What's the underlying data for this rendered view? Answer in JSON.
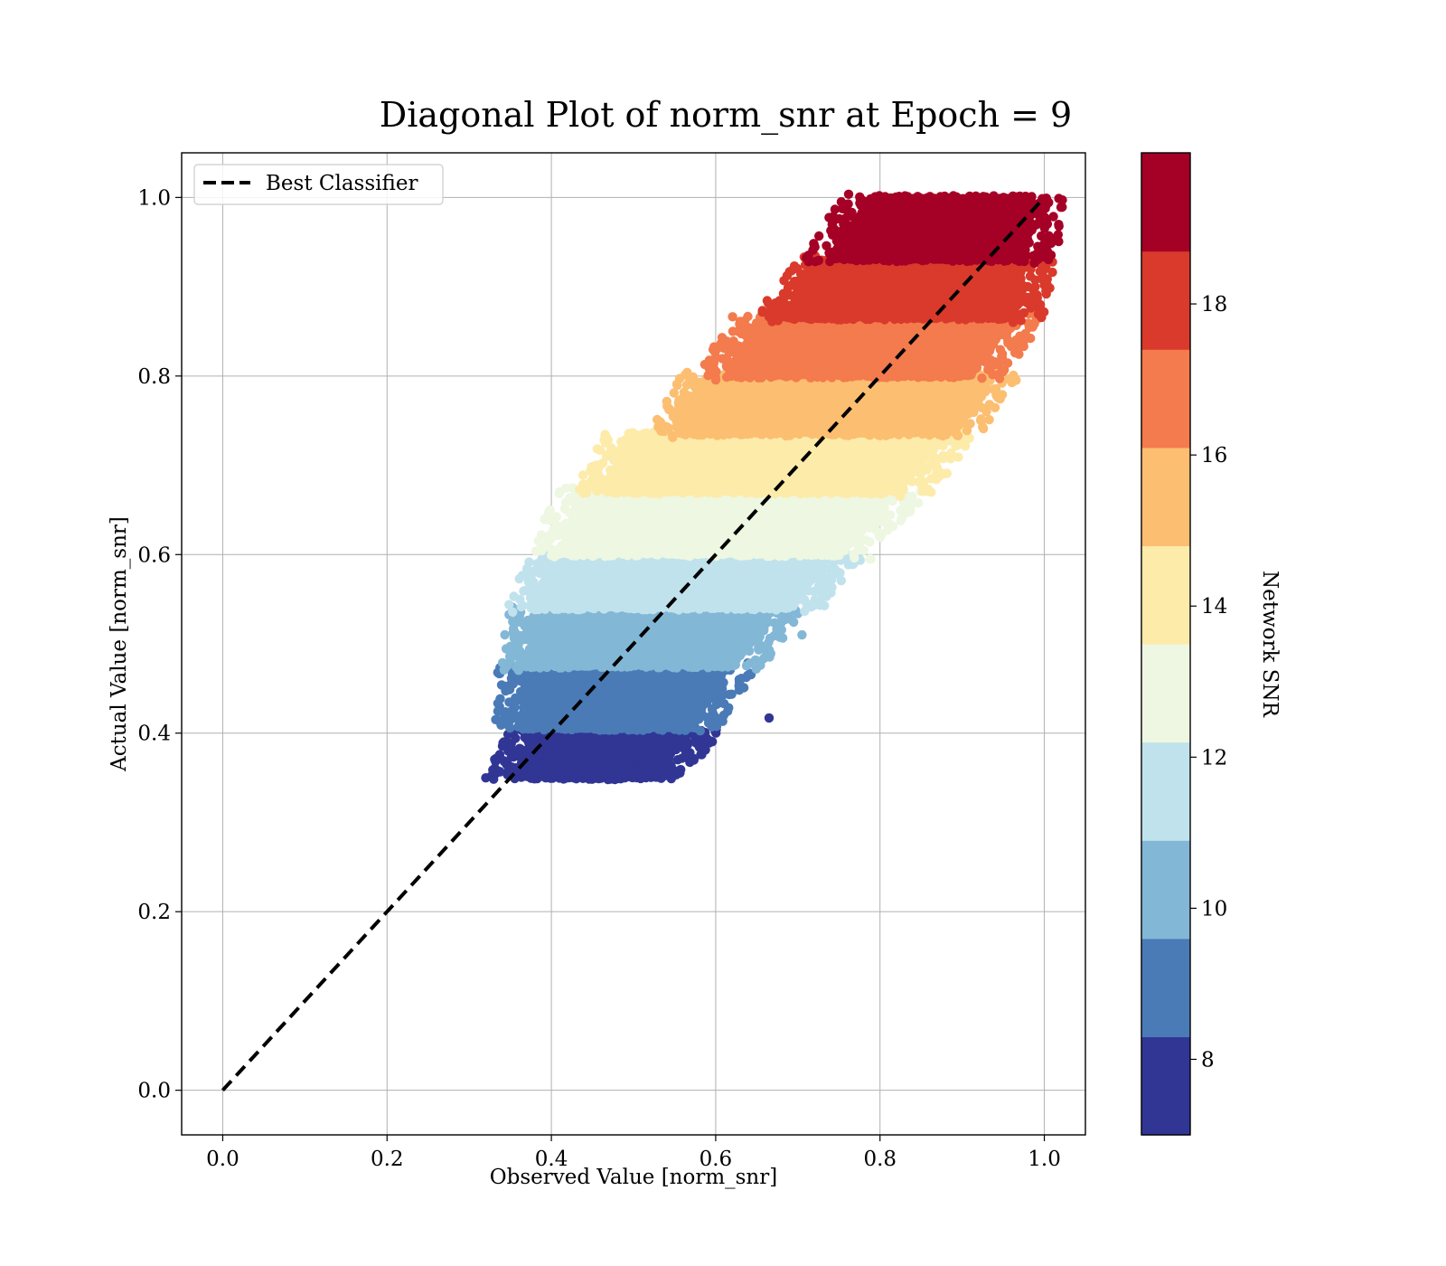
{
  "chart_data": {
    "type": "scatter",
    "title": "Diagonal Plot of norm_snr at Epoch = 9",
    "xlabel": "Observed Value [norm_snr]",
    "ylabel": "Actual Value [norm_snr]",
    "xlim": [
      -0.05,
      1.05
    ],
    "ylim": [
      -0.05,
      1.05
    ],
    "xticks": [
      "0.0",
      "0.2",
      "0.4",
      "0.6",
      "0.8",
      "1.0"
    ],
    "yticks": [
      "0.0",
      "0.2",
      "0.4",
      "0.6",
      "0.8",
      "1.0"
    ],
    "grid": true,
    "legend": {
      "placement": "top-left",
      "entries": [
        {
          "label": "Best Classifier",
          "style": "dashed",
          "color": "#000000"
        }
      ]
    },
    "reference_line": {
      "x": [
        0.0,
        1.0
      ],
      "y": [
        0.0,
        1.0
      ]
    },
    "colorbar": {
      "label": "Network SNR",
      "range": [
        7,
        20
      ],
      "ticks": [
        "8",
        "10",
        "12",
        "14",
        "16",
        "18"
      ],
      "band_colors": [
        "#313695",
        "#4a7bb7",
        "#83b7d6",
        "#c0e2ed",
        "#eef7e1",
        "#fdebaa",
        "#fcbe71",
        "#f37b4d",
        "#d93a2b",
        "#a50026"
      ]
    },
    "bands": [
      {
        "color": "#313695",
        "ylo": 0.35,
        "yhi": 0.405,
        "xmin_lo": 0.355,
        "xmin_hi": 0.385,
        "xmax_lo": 0.52,
        "xmax_hi": 0.57,
        "tail_x": [
          0.6,
          0.665
        ],
        "tail_y": [
          0.41,
          0.417
        ]
      },
      {
        "color": "#4a7bb7",
        "ylo": 0.405,
        "yhi": 0.475,
        "xmin_lo": 0.365,
        "xmin_hi": 0.37,
        "xmax_lo": 0.57,
        "xmax_hi": 0.61
      },
      {
        "color": "#83b7d6",
        "ylo": 0.475,
        "yhi": 0.54,
        "xmin_lo": 0.37,
        "xmin_hi": 0.385,
        "xmax_lo": 0.62,
        "xmax_hi": 0.67,
        "tail_x": [
          0.705
        ],
        "tail_y": [
          0.51
        ]
      },
      {
        "color": "#c0e2ed",
        "ylo": 0.54,
        "yhi": 0.6,
        "xmin_lo": 0.38,
        "xmin_hi": 0.41,
        "xmax_lo": 0.69,
        "xmax_hi": 0.74
      },
      {
        "color": "#eef7e1",
        "ylo": 0.6,
        "yhi": 0.67,
        "xmin_lo": 0.41,
        "xmin_hi": 0.44,
        "xmax_lo": 0.75,
        "xmax_hi": 0.82
      },
      {
        "color": "#fdebaa",
        "ylo": 0.67,
        "yhi": 0.735,
        "xmin_lo": 0.465,
        "xmin_hi": 0.5,
        "xmax_lo": 0.82,
        "xmax_hi": 0.88
      },
      {
        "color": "#fcbe71",
        "ylo": 0.735,
        "yhi": 0.8,
        "xmin_lo": 0.555,
        "xmin_hi": 0.59,
        "xmax_lo": 0.88,
        "xmax_hi": 0.93
      },
      {
        "color": "#f37b4d",
        "ylo": 0.8,
        "yhi": 0.865,
        "xmin_lo": 0.615,
        "xmin_hi": 0.655,
        "xmax_lo": 0.91,
        "xmax_hi": 0.96
      },
      {
        "color": "#d93a2b",
        "ylo": 0.865,
        "yhi": 0.93,
        "xmin_lo": 0.685,
        "xmin_hi": 0.73,
        "xmax_lo": 0.96,
        "xmax_hi": 0.975
      },
      {
        "color": "#a50026",
        "ylo": 0.93,
        "yhi": 1.0,
        "xmin_lo": 0.74,
        "xmin_hi": 0.79,
        "xmax_lo": 0.975,
        "xmax_hi": 0.985
      }
    ]
  }
}
